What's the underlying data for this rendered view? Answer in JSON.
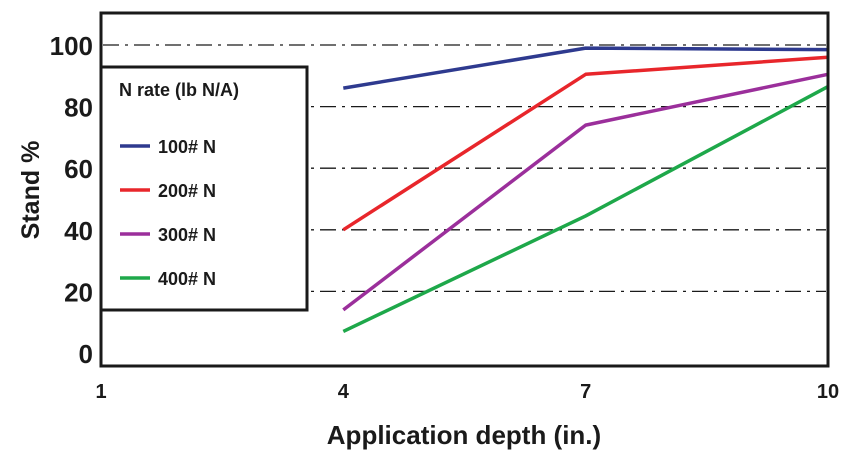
{
  "chart_data": {
    "type": "line",
    "title": "",
    "xlabel": "Application depth (in.)",
    "ylabel": "Stand %",
    "x": [
      4,
      7,
      10
    ],
    "x_ticks": [
      1,
      4,
      7,
      10
    ],
    "y_ticks": [
      0,
      20,
      40,
      60,
      80,
      100
    ],
    "xlim": [
      1,
      10
    ],
    "ylim": [
      0,
      110
    ],
    "grid": "horizontal dash-dot at 20, 40, 60, 80, 100",
    "legend": {
      "title": "N rate (lb N/A)",
      "placement": "left"
    },
    "series": [
      {
        "name": "100# N",
        "color": "#2e3a8f",
        "values": [
          86,
          99,
          98.5
        ]
      },
      {
        "name": "200# N",
        "color": "#e8262b",
        "values": [
          40,
          90.5,
          96
        ]
      },
      {
        "name": "300# N",
        "color": "#9b2f9b",
        "values": [
          14,
          74,
          90.5
        ]
      },
      {
        "name": "400# N",
        "color": "#1ea84a",
        "values": [
          7,
          44.5,
          86.5
        ]
      }
    ]
  }
}
